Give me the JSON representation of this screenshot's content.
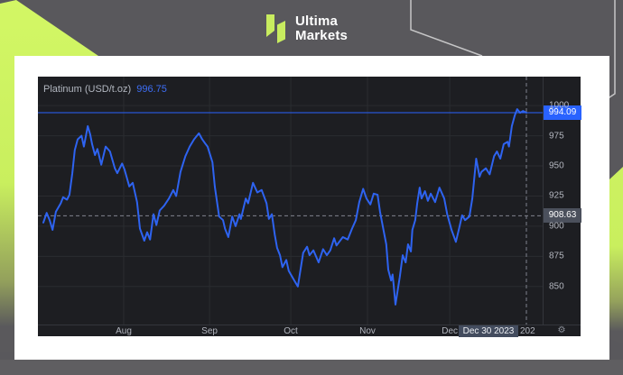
{
  "brand": {
    "line1": "Ultima",
    "line2": "Markets",
    "logo_color": "#c8ec5f"
  },
  "colors": {
    "accent_lime": "#cdf161",
    "page_gray": "#59585c",
    "card_white": "#ffffff",
    "panel_bg": "#1d1e22",
    "series_blue": "#2e63f0",
    "last_price_blue": "#2962ff",
    "crosshair_gray": "#80838d",
    "axis_text": "#b2b5be"
  },
  "chart": {
    "symbol_label": "Platinum (USD/t.oz)",
    "symbol_value": "996.75",
    "last_price_label": "994.09",
    "crosshair_price_label": "908.63",
    "crosshair_date_label": "Dec 30 2023",
    "next_axis_label": "202",
    "gear_icon": "⚙"
  },
  "chart_data": {
    "type": "line",
    "title": "Platinum (USD/t.oz)",
    "ylabel": "USD/t.oz",
    "y_ticks": [
      1000,
      975,
      950,
      925,
      900,
      875,
      850
    ],
    "x_ticks": [
      "Aug",
      "Sep",
      "Oct",
      "Nov",
      "Dec"
    ],
    "x_tick_pos": [
      0.17,
      0.34,
      0.501,
      0.653,
      0.816
    ],
    "y_render_range": [
      818.5,
      1024
    ],
    "grid": true,
    "legend": false,
    "last_price": 994.09,
    "crosshair": {
      "date": "Dec 30 2023",
      "price": 908.63
    },
    "points": [
      [
        0,
        903
      ],
      [
        0.007,
        911
      ],
      [
        0.013,
        905
      ],
      [
        0.019,
        897
      ],
      [
        0.026,
        912
      ],
      [
        0.036,
        919
      ],
      [
        0.041,
        924
      ],
      [
        0.049,
        922
      ],
      [
        0.054,
        926
      ],
      [
        0.06,
        944
      ],
      [
        0.065,
        963
      ],
      [
        0.071,
        972
      ],
      [
        0.079,
        975
      ],
      [
        0.084,
        966
      ],
      [
        0.092,
        983
      ],
      [
        0.097,
        976
      ],
      [
        0.101,
        968
      ],
      [
        0.107,
        959
      ],
      [
        0.112,
        964
      ],
      [
        0.12,
        951
      ],
      [
        0.129,
        966
      ],
      [
        0.138,
        962
      ],
      [
        0.148,
        948
      ],
      [
        0.153,
        944
      ],
      [
        0.163,
        952
      ],
      [
        0.168,
        947
      ],
      [
        0.178,
        933
      ],
      [
        0.185,
        936
      ],
      [
        0.194,
        920
      ],
      [
        0.2,
        898
      ],
      [
        0.209,
        888
      ],
      [
        0.215,
        895
      ],
      [
        0.221,
        889
      ],
      [
        0.228,
        910
      ],
      [
        0.234,
        901
      ],
      [
        0.241,
        913
      ],
      [
        0.25,
        917
      ],
      [
        0.26,
        923
      ],
      [
        0.269,
        930
      ],
      [
        0.275,
        925
      ],
      [
        0.284,
        945
      ],
      [
        0.294,
        958
      ],
      [
        0.303,
        966
      ],
      [
        0.312,
        972
      ],
      [
        0.322,
        977
      ],
      [
        0.329,
        972
      ],
      [
        0.336,
        968
      ],
      [
        0.34,
        966
      ],
      [
        0.35,
        953
      ],
      [
        0.355,
        933
      ],
      [
        0.364,
        908
      ],
      [
        0.372,
        905
      ],
      [
        0.376,
        898
      ],
      [
        0.383,
        891
      ],
      [
        0.391,
        908
      ],
      [
        0.398,
        900
      ],
      [
        0.406,
        910
      ],
      [
        0.409,
        906
      ],
      [
        0.419,
        923
      ],
      [
        0.424,
        919
      ],
      [
        0.434,
        936
      ],
      [
        0.443,
        928
      ],
      [
        0.452,
        930
      ],
      [
        0.462,
        919
      ],
      [
        0.467,
        906
      ],
      [
        0.473,
        910
      ],
      [
        0.479,
        893
      ],
      [
        0.484,
        882
      ],
      [
        0.49,
        876
      ],
      [
        0.495,
        866
      ],
      [
        0.503,
        872
      ],
      [
        0.508,
        863
      ],
      [
        0.521,
        854
      ],
      [
        0.527,
        850
      ],
      [
        0.538,
        878
      ],
      [
        0.546,
        883
      ],
      [
        0.551,
        876
      ],
      [
        0.559,
        880
      ],
      [
        0.57,
        870
      ],
      [
        0.579,
        881
      ],
      [
        0.587,
        876
      ],
      [
        0.594,
        880
      ],
      [
        0.602,
        890
      ],
      [
        0.607,
        884
      ],
      [
        0.62,
        891
      ],
      [
        0.63,
        889
      ],
      [
        0.639,
        898
      ],
      [
        0.647,
        905
      ],
      [
        0.654,
        920
      ],
      [
        0.662,
        931
      ],
      [
        0.669,
        923
      ],
      [
        0.677,
        918
      ],
      [
        0.684,
        927
      ],
      [
        0.692,
        926
      ],
      [
        0.697,
        912
      ],
      [
        0.705,
        895
      ],
      [
        0.71,
        885
      ],
      [
        0.714,
        864
      ],
      [
        0.72,
        855
      ],
      [
        0.723,
        860
      ],
      [
        0.725,
        852
      ],
      [
        0.729,
        835
      ],
      [
        0.734,
        848
      ],
      [
        0.738,
        858
      ],
      [
        0.744,
        876
      ],
      [
        0.75,
        870
      ],
      [
        0.755,
        885
      ],
      [
        0.761,
        879
      ],
      [
        0.764,
        897
      ],
      [
        0.77,
        905
      ],
      [
        0.774,
        919
      ],
      [
        0.779,
        932
      ],
      [
        0.783,
        923
      ],
      [
        0.79,
        929
      ],
      [
        0.796,
        921
      ],
      [
        0.802,
        927
      ],
      [
        0.811,
        920
      ],
      [
        0.82,
        932
      ],
      [
        0.83,
        923
      ],
      [
        0.836,
        910
      ],
      [
        0.845,
        897
      ],
      [
        0.854,
        887
      ],
      [
        0.86,
        897
      ],
      [
        0.867,
        909
      ],
      [
        0.873,
        905
      ],
      [
        0.882,
        908
      ],
      [
        0.888,
        923
      ],
      [
        0.896,
        956
      ],
      [
        0.903,
        941
      ],
      [
        0.907,
        945
      ],
      [
        0.916,
        948
      ],
      [
        0.924,
        943
      ],
      [
        0.933,
        958
      ],
      [
        0.939,
        962
      ],
      [
        0.946,
        956
      ],
      [
        0.953,
        968
      ],
      [
        0.961,
        970
      ],
      [
        0.964,
        966
      ],
      [
        0.97,
        983
      ],
      [
        0.976,
        992
      ],
      [
        0.981,
        997
      ],
      [
        0.987,
        994
      ],
      [
        0.993,
        995.5
      ],
      [
        1,
        994.09
      ]
    ]
  }
}
